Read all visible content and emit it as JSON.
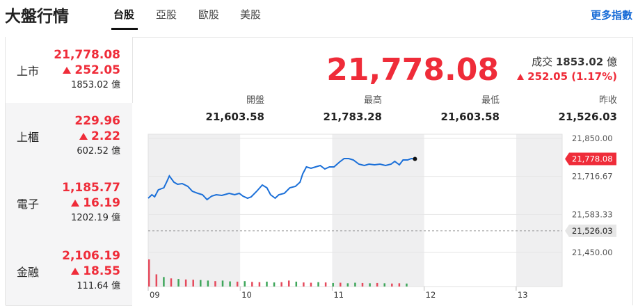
{
  "header": {
    "title": "大盤行情",
    "tabs": [
      "台股",
      "亞股",
      "歐股",
      "美股"
    ],
    "more_link": "更多指數"
  },
  "markets": [
    {
      "name": "上市",
      "price": "21,778.08",
      "change": "252.05",
      "volume": "1853.02 億"
    },
    {
      "name": "上櫃",
      "price": "229.96",
      "change": "2.22",
      "volume": "602.52 億"
    },
    {
      "name": "電子",
      "price": "1,185.77",
      "change": "16.19",
      "volume": "1202.19 億"
    },
    {
      "name": "金融",
      "price": "2,106.19",
      "change": "18.55",
      "volume": "111.64 億"
    }
  ],
  "summary": {
    "price": "21,778.08",
    "volume_label": "成交",
    "volume": "1853.02",
    "unit": "億",
    "change": "252.05 (1.17%)",
    "stats": [
      {
        "label": "開盤",
        "value": "21,603.58"
      },
      {
        "label": "最高",
        "value": "21,783.28"
      },
      {
        "label": "最低",
        "value": "21,603.58"
      },
      {
        "label": "昨收",
        "value": "21,526.03"
      }
    ]
  },
  "chart_data": {
    "type": "line",
    "color": "#1a6fd8",
    "x": [
      9.0,
      9.04,
      9.07,
      9.11,
      9.17,
      9.2,
      9.23,
      9.28,
      9.32,
      9.37,
      9.43,
      9.48,
      9.54,
      9.59,
      9.64,
      9.69,
      9.74,
      9.8,
      9.88,
      9.94,
      9.99,
      10.03,
      10.08,
      10.12,
      10.18,
      10.24,
      10.29,
      10.33,
      10.38,
      10.42,
      10.48,
      10.54,
      10.6,
      10.65,
      10.68,
      10.72,
      10.77,
      10.82,
      10.87,
      10.92,
      10.97,
      11.02,
      11.08,
      11.13,
      11.18,
      11.23,
      11.29,
      11.35,
      11.4,
      11.46,
      11.52,
      11.58,
      11.64,
      11.68,
      11.73,
      11.77,
      11.82,
      11.86,
      11.9
    ],
    "values": [
      21640.2,
      21652.4,
      21645.1,
      21669.5,
      21676.8,
      21696.3,
      21718.3,
      21696.3,
      21689.0,
      21691.5,
      21681.7,
      21664.6,
      21657.3,
      21652.4,
      21635.4,
      21647.6,
      21652.4,
      21650.0,
      21657.3,
      21652.4,
      21657.3,
      21647.6,
      21640.2,
      21645.1,
      21664.6,
      21686.6,
      21676.8,
      21652.4,
      21640.2,
      21652.4,
      21657.3,
      21676.8,
      21681.7,
      21696.3,
      21725.6,
      21750.0,
      21745.1,
      21750.0,
      21754.9,
      21742.7,
      21750.0,
      21750.0,
      21767.1,
      21779.3,
      21779.3,
      21774.4,
      21759.8,
      21754.9,
      21759.8,
      21757.3,
      21759.8,
      21754.9,
      21759.8,
      21769.5,
      21757.3,
      21774.4,
      21774.4,
      21779.3,
      21778.08
    ],
    "xlim": [
      9,
      13.5
    ],
    "xticks": [
      {
        "value": 9,
        "label": "09"
      },
      10,
      11,
      12,
      13
    ],
    "ylim": [
      21450,
      21850
    ],
    "yticks": [
      {
        "value": 21850,
        "label": "21,850.00"
      },
      {
        "value": 21716.67,
        "label": "21,716.67"
      },
      {
        "value": 21583.33,
        "label": "21,583.33"
      },
      {
        "value": 21450,
        "label": "21,450.00"
      }
    ],
    "last": {
      "value": 21778.08,
      "label": "21,778.08",
      "color": "#ef2c39"
    },
    "prev_close": {
      "value": 21526.03,
      "label": "21,526.03"
    },
    "volume": {
      "ylim": [
        0,
        100
      ],
      "x": [
        9.0,
        9.08,
        9.16,
        9.24,
        9.32,
        9.4,
        9.48,
        9.56,
        9.64,
        9.72,
        9.8,
        9.88,
        9.96,
        10.04,
        10.12,
        10.2,
        10.28,
        10.36,
        10.44,
        10.52,
        10.6,
        10.68,
        10.76,
        10.84,
        10.92,
        11.0,
        11.08,
        11.16,
        11.24,
        11.32,
        11.4,
        11.48,
        11.56,
        11.64,
        11.72,
        11.8
      ],
      "values": [
        100,
        45,
        35,
        30,
        28,
        26,
        25,
        24,
        22,
        20,
        22,
        19,
        18,
        20,
        17,
        16,
        18,
        15,
        16,
        22,
        18,
        15,
        14,
        16,
        15,
        13,
        14,
        12,
        14,
        13,
        12,
        13,
        12,
        11,
        12,
        11
      ],
      "colors": [
        "#e54a5c",
        "#e54a5c",
        "#3ea65a",
        "#e54a5c",
        "#3ea65a",
        "#e54a5c",
        "#e54a5c",
        "#3ea65a",
        "#3ea65a",
        "#e54a5c",
        "#3ea65a",
        "#3ea65a",
        "#e54a5c",
        "#3ea65a",
        "#e54a5c",
        "#e54a5c",
        "#3ea65a",
        "#3ea65a",
        "#e54a5c",
        "#e54a5c",
        "#3ea65a",
        "#e54a5c",
        "#e54a5c",
        "#3ea65a",
        "#e54a5c",
        "#3ea65a",
        "#e54a5c",
        "#3ea65a",
        "#3ea65a",
        "#e54a5c",
        "#3ea65a",
        "#e54a5c",
        "#3ea65a",
        "#e54a5c",
        "#e54a5c",
        "#3ea65a"
      ]
    }
  }
}
